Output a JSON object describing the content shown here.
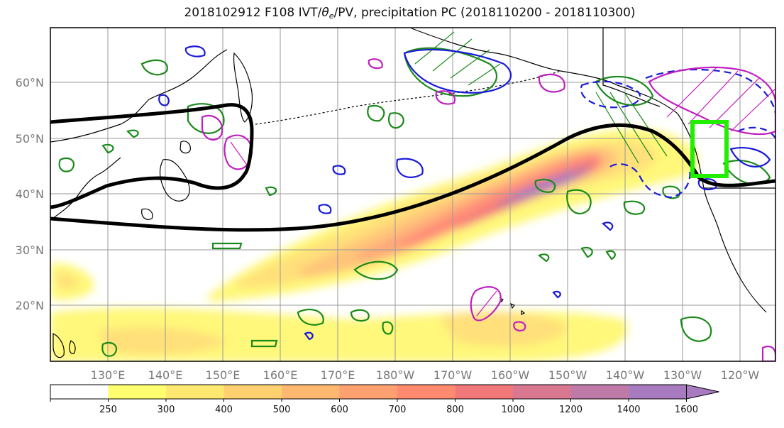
{
  "title": {
    "prefix": "2018102912 F108 IVT/",
    "theta": "θ",
    "sub": "e",
    "suffix": "/PV, precipitation PC (2018110200 - 2018110300)"
  },
  "lat_labels": [
    "60°N",
    "50°N",
    "40°N",
    "30°N",
    "20°N"
  ],
  "lon_labels": [
    "130°E",
    "140°E",
    "150°E",
    "160°E",
    "170°E",
    "180°W",
    "170°W",
    "160°W",
    "150°W",
    "140°W",
    "130°W",
    "120°W"
  ],
  "colorbar": {
    "labels": [
      "250",
      "300",
      "400",
      "500",
      "600",
      "700",
      "800",
      "1000",
      "1200",
      "1400",
      "1600"
    ],
    "colors": [
      "#ffffff",
      "#ffff70",
      "#ffe870",
      "#ffd070",
      "#ffb870",
      "#ffa070",
      "#ff8a70",
      "#f07878",
      "#d97890",
      "#c07aa8",
      "#a87ac0",
      "#a87ac0"
    ]
  },
  "styles": {
    "ivt_contour": "#000000",
    "theta_contour_green": "#1a8a1a",
    "pv_contour_blue": "#1a1ad8",
    "pv_contour_magenta": "#c020c0",
    "box_color": "#22ee00",
    "coast_color": "#000000",
    "grid_color": "#999999"
  }
}
